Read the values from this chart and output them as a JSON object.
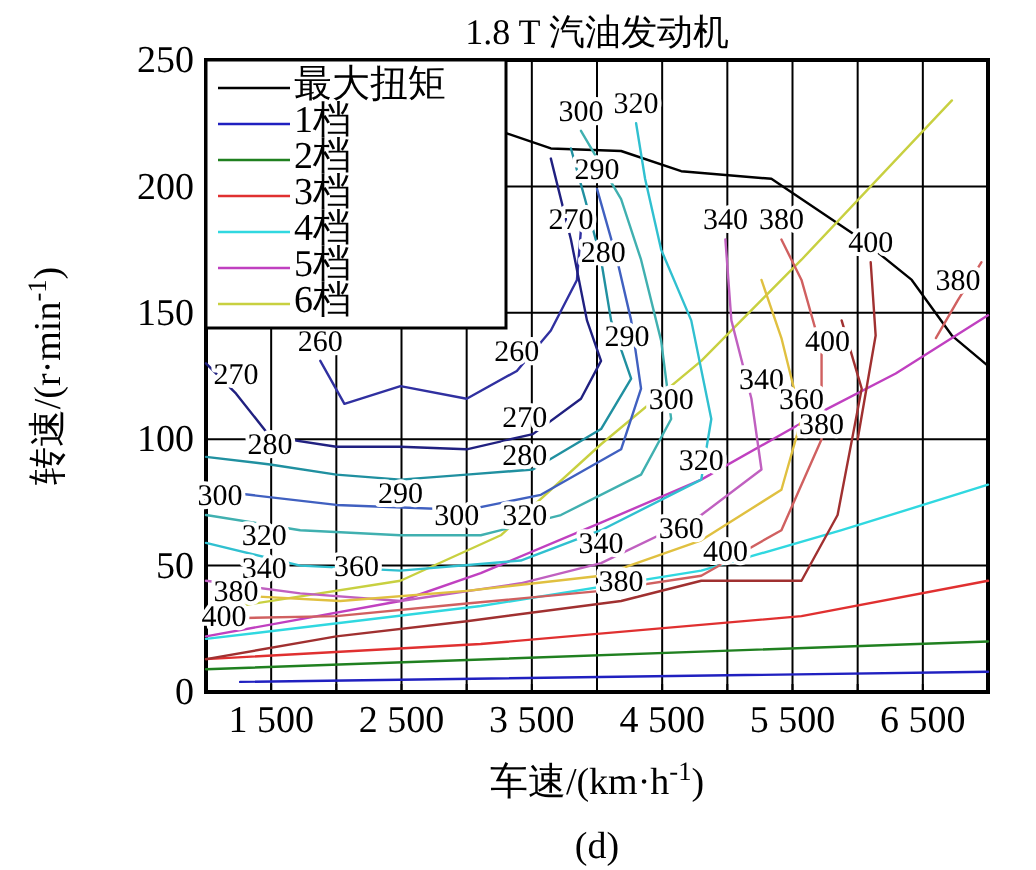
{
  "chart_data": {
    "type": "line",
    "title": "1.8 T 汽油发动机",
    "xlabel": "车速/(km·h$^{-1}$)",
    "ylabel": "转速/(r·min$^{-1}$)",
    "xlim": [
      1000,
      7000
    ],
    "ylim": [
      0,
      250
    ],
    "xticks": [
      {
        "value": 1500,
        "label": "1 500"
      },
      {
        "value": 2000,
        "label": null
      },
      {
        "value": 2500,
        "label": "2 500"
      },
      {
        "value": 3000,
        "label": null
      },
      {
        "value": 3500,
        "label": "3 500"
      },
      {
        "value": 4000,
        "label": null
      },
      {
        "value": 4500,
        "label": "4 500"
      },
      {
        "value": 5000,
        "label": null
      },
      {
        "value": 5500,
        "label": "5 500"
      },
      {
        "value": 6000,
        "label": null
      },
      {
        "value": 6500,
        "label": "6 500"
      }
    ],
    "yticks": [
      0,
      50,
      100,
      150,
      200,
      250
    ],
    "grid": true,
    "legend": "top left",
    "series": [
      {
        "name": "最大扭矩",
        "color": "#000000",
        "x": [
          3308,
          3646,
          4185,
          4646,
          5338,
          5569,
          6031,
          6415,
          6723,
          7000
        ],
        "values": [
          221,
          215,
          214,
          206,
          203,
          195,
          179,
          163,
          141,
          129
        ]
      },
      {
        "name": "1档",
        "color": "#2020c0",
        "x": [
          1262,
          7000
        ],
        "values": [
          4,
          8
        ]
      },
      {
        "name": "2档",
        "color": "#208020",
        "x": [
          1000,
          7000
        ],
        "values": [
          9,
          20
        ]
      },
      {
        "name": "3档",
        "color": "#e03030",
        "x": [
          1000,
          3108,
          5569,
          7000
        ],
        "values": [
          13,
          19,
          30,
          44
        ]
      },
      {
        "name": "4档",
        "color": "#30d8e0",
        "x": [
          1000,
          3108,
          4800,
          5877,
          7000
        ],
        "values": [
          21,
          34,
          48,
          64,
          82
        ]
      },
      {
        "name": "5档",
        "color": "#c040c0",
        "x": [
          1000,
          2492,
          3108,
          4031,
          4800,
          5692,
          6292,
          7000
        ],
        "values": [
          22,
          36,
          47,
          67,
          84,
          110,
          126,
          149
        ]
      },
      {
        "name": "6档",
        "color": "#c8d040",
        "x": [
          1000,
          2492,
          3262,
          4031,
          4800,
          5569,
          6723
        ],
        "values": [
          32,
          44,
          62,
          98,
          131,
          171,
          234
        ]
      },
      {
        "color": "#3030a0",
        "x": [
          1877,
          2062,
          2492,
          3000,
          3385,
          3646,
          3846,
          3877
        ],
        "values": [
          131,
          114,
          121,
          116,
          127,
          143,
          163,
          183
        ]
      },
      {
        "color": "#202080",
        "x": [
          1000,
          1231,
          1492,
          2000,
          2492,
          3000,
          3508,
          3877,
          4031,
          3923,
          3800,
          3646
        ],
        "values": [
          130,
          118,
          101,
          97,
          97,
          96,
          102,
          116,
          131,
          147,
          179,
          211
        ]
      },
      {
        "color": "#2090a0",
        "x": [
          1000,
          1492,
          2000,
          2492,
          3000,
          3508,
          4031,
          4262,
          4108,
          4031,
          3908,
          3800
        ],
        "values": [
          93,
          90,
          86,
          84,
          86,
          88,
          104,
          124,
          147,
          171,
          195,
          215
        ]
      },
      {
        "color": "#4060c0",
        "x": [
          1000,
          2000,
          3000,
          3569,
          4185,
          4338,
          4262,
          4154,
          4000
        ],
        "values": [
          80,
          74,
          72,
          78,
          96,
          120,
          147,
          171,
          199
        ]
      },
      {
        "color": "#40b0b0",
        "x": [
          1000,
          1723,
          2492,
          3108,
          3723,
          4338,
          4569,
          4492,
          4338,
          4185,
          3877
        ],
        "values": [
          70,
          64,
          62,
          62,
          70,
          86,
          108,
          139,
          171,
          195,
          222
        ]
      },
      {
        "color": "#30c0d0",
        "x": [
          1000,
          1723,
          2492,
          3415,
          4031,
          4800,
          4877,
          4723,
          4492,
          4369,
          4300
        ],
        "values": [
          59,
          50,
          48,
          52,
          64,
          84,
          108,
          147,
          175,
          203,
          225
        ]
      },
      {
        "color": "#c060c0",
        "x": [
          1000,
          1723,
          2492,
          3415,
          4031,
          4800,
          5262,
          5185,
          5031,
          4985
        ],
        "values": [
          44,
          39,
          36,
          43,
          51,
          70,
          88,
          116,
          147,
          179
        ]
      },
      {
        "color": "#e0c040",
        "x": [
          1300,
          2031,
          3000,
          4031,
          4800,
          5415,
          5569,
          5415,
          5262
        ],
        "values": [
          38,
          36,
          40,
          46,
          60,
          80,
          108,
          140,
          163
        ]
      },
      {
        "color": "#d06060",
        "x": [
          1000,
          2000,
          3000,
          4031,
          4800,
          5415,
          5723,
          5723,
          5569,
          5415
        ],
        "values": [
          29,
          30,
          35,
          40,
          46,
          64,
          100,
          135,
          163,
          179
        ]
      },
      {
        "color": "#d06060",
        "x": [
          6600,
          6769,
          6950
        ],
        "values": [
          140,
          155,
          170
        ]
      },
      {
        "color": "#a03030",
        "x": [
          6000,
          6138,
          6100
        ],
        "values": [
          100,
          141,
          170
        ]
      },
      {
        "color": "#a03030",
        "x": [
          1000,
          2000,
          3000,
          4185,
          4800,
          5569,
          5846,
          6031,
          5877
        ],
        "values": [
          13,
          22,
          28,
          36,
          44,
          44,
          70,
          120,
          147
        ]
      }
    ],
    "annotations": [
      {
        "text": "260",
        "x": 1877,
        "y": 131
      },
      {
        "text": "270",
        "x": 1231,
        "y": 118
      },
      {
        "text": "260",
        "x": 3385,
        "y": 127
      },
      {
        "text": "270",
        "x": 3800,
        "y": 179
      },
      {
        "text": "270",
        "x": 3446,
        "y": 101
      },
      {
        "text": "280",
        "x": 1492,
        "y": 90
      },
      {
        "text": "280",
        "x": 3446,
        "y": 86
      },
      {
        "text": "300",
        "x": 1108,
        "y": 70
      },
      {
        "text": "290",
        "x": 2492,
        "y": 71
      },
      {
        "text": "300",
        "x": 2923,
        "y": 62
      },
      {
        "text": "320",
        "x": 3446,
        "y": 62
      },
      {
        "text": "320",
        "x": 1446,
        "y": 54
      },
      {
        "text": "340",
        "x": 1446,
        "y": 41
      },
      {
        "text": "360",
        "x": 2154,
        "y": 42
      },
      {
        "text": "380",
        "x": 1231,
        "y": 32
      },
      {
        "text": "400",
        "x": 1138,
        "y": 22
      },
      {
        "text": "340",
        "x": 4031,
        "y": 51
      },
      {
        "text": "360",
        "x": 4646,
        "y": 57
      },
      {
        "text": "380",
        "x": 4185,
        "y": 36
      },
      {
        "text": "400",
        "x": 4985,
        "y": 48
      },
      {
        "text": "300",
        "x": 3877,
        "y": 222
      },
      {
        "text": "290",
        "x": 4000,
        "y": 199
      },
      {
        "text": "280",
        "x": 4047,
        "y": 166
      },
      {
        "text": "320",
        "x": 4300,
        "y": 225
      },
      {
        "text": "340",
        "x": 4985,
        "y": 179
      },
      {
        "text": "380",
        "x": 5415,
        "y": 179
      },
      {
        "text": "290",
        "x": 4231,
        "y": 133
      },
      {
        "text": "300",
        "x": 4569,
        "y": 108
      },
      {
        "text": "320",
        "x": 4800,
        "y": 84
      },
      {
        "text": "340",
        "x": 5262,
        "y": 116
      },
      {
        "text": "360",
        "x": 5569,
        "y": 108
      },
      {
        "text": "380",
        "x": 5723,
        "y": 98
      },
      {
        "text": "400",
        "x": 5769,
        "y": 131
      },
      {
        "text": "400",
        "x": 6100,
        "y": 170
      },
      {
        "text": "380",
        "x": 6769,
        "y": 155
      },
      "(d)"
    ]
  }
}
